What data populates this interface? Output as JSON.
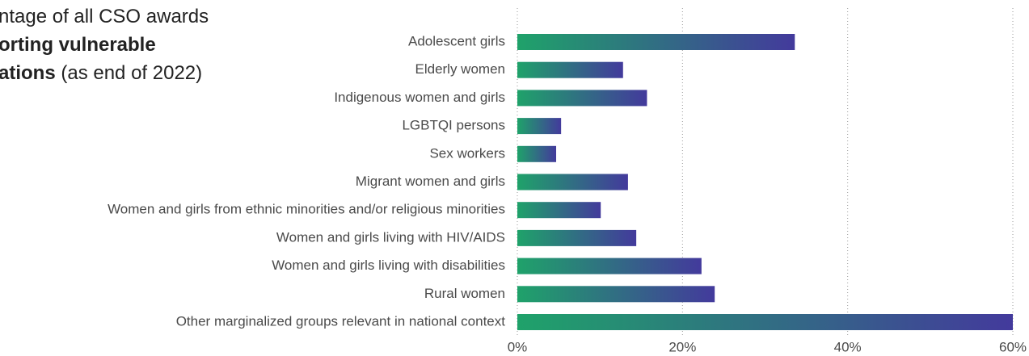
{
  "chart_data": {
    "type": "hbar",
    "title_lines": [
      [
        {
          "text": "ntage of all CSO awards",
          "bold": false
        }
      ],
      [
        {
          "text": "orting vulnerable",
          "bold": true
        }
      ],
      [
        {
          "text": "ations",
          "bold": true
        },
        {
          "text": " (as end of 2022)",
          "bold": false
        }
      ]
    ],
    "categories": [
      "Adolescent girls",
      "Elderly women",
      "Indigenous women and girls",
      "LGBTQI persons",
      "Sex workers",
      "Migrant women and girls",
      "Women and girls from ethnic minorities and/or religious minorities",
      "Women and girls living with HIV/AIDS",
      "Women and girls living with disabilities",
      "Rural women",
      "Other marginalized groups relevant in national context"
    ],
    "values": [
      33.6,
      12.8,
      15.7,
      5.3,
      4.7,
      13.4,
      10.1,
      14.4,
      22.3,
      23.9,
      60
    ],
    "colors": [
      "#1fa26a",
      "#433a9c"
    ],
    "xlim": [
      0,
      60
    ],
    "xticks": [
      {
        "value": 0,
        "label": "0%"
      },
      {
        "value": 20,
        "label": "20%"
      },
      {
        "value": 40,
        "label": "40%"
      },
      {
        "value": 60,
        "label": "60%"
      }
    ],
    "grid": true
  }
}
